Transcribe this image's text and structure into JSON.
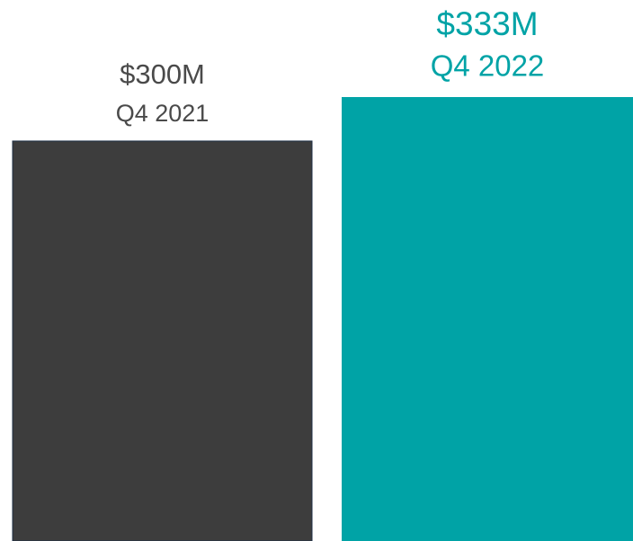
{
  "chart_data": {
    "type": "bar",
    "categories": [
      "Q4 2021",
      "Q4 2022"
    ],
    "values": [
      300,
      333
    ],
    "value_labels": [
      "$300M",
      "$333M"
    ],
    "colors": [
      "#3d3d3d",
      "#00a3a6"
    ],
    "label_colors": [
      "#4a4a4a",
      "#00a3a6"
    ]
  }
}
